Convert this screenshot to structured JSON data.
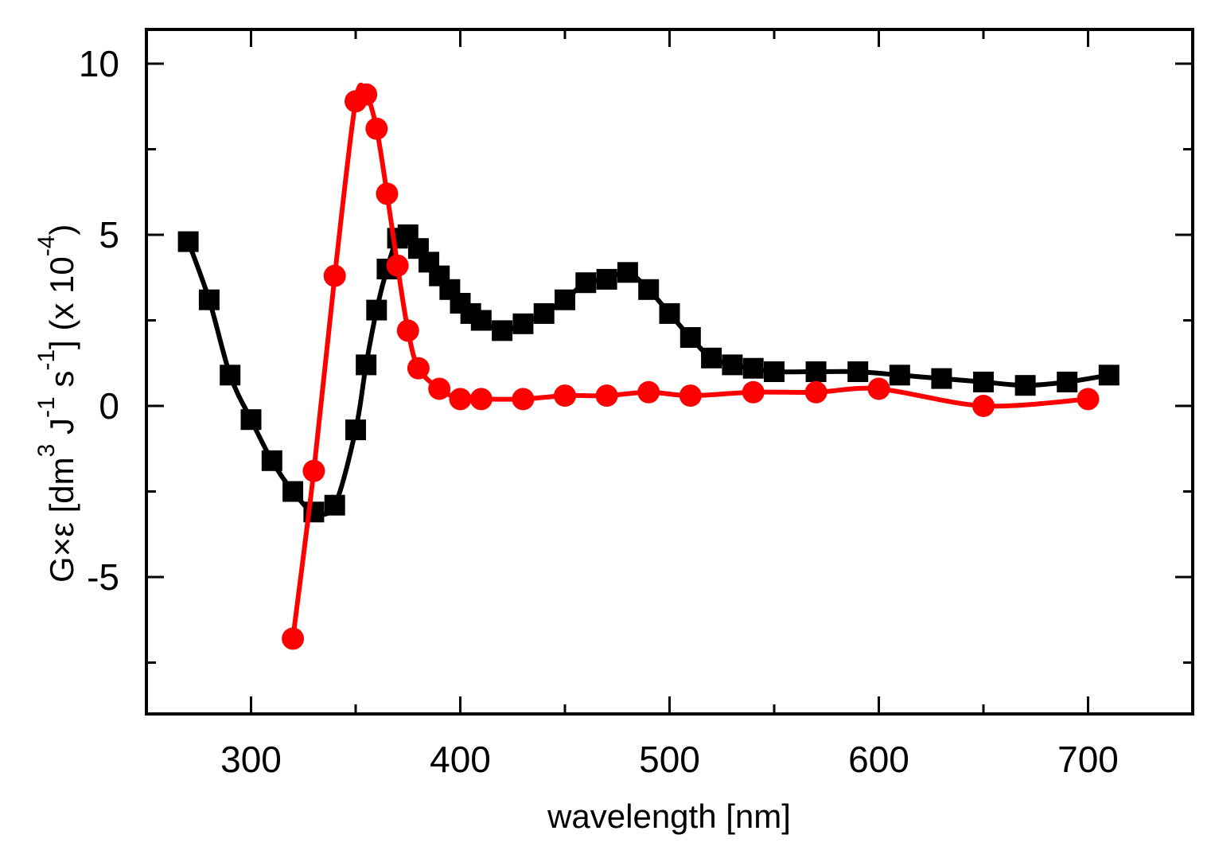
{
  "chart_data": {
    "type": "line",
    "title": "",
    "xlabel": "wavelength [nm]",
    "ylabel": "G×ε [dm3 J-1 s-1] (x 10-4)",
    "ylabel_parts": {
      "prefix": "G×ε [dm",
      "sup1": "3",
      "mid1": " J",
      "sup2": "-1",
      "mid2": " s",
      "sup3": "-1",
      "mid3": "] (x 10",
      "sup4": "-4",
      "suffix": ")"
    },
    "xlim": [
      250,
      750
    ],
    "ylim": [
      -9,
      11
    ],
    "xticks": [
      300,
      400,
      500,
      600,
      700
    ],
    "xtick_labels": [
      "300",
      "400",
      "500",
      "600",
      "700"
    ],
    "xminor": [
      250,
      350,
      450,
      550,
      650,
      750
    ],
    "yticks": [
      -5,
      0,
      5,
      10
    ],
    "ytick_labels": [
      "-5",
      "0",
      "5",
      "10"
    ],
    "yminor": [
      -7.5,
      -2.5,
      2.5,
      7.5
    ],
    "grid": false,
    "legend": "none",
    "series": [
      {
        "name": "squares",
        "color": "#000000",
        "marker": "square",
        "x": [
          270,
          280,
          290,
          300,
          310,
          320,
          330,
          340,
          350,
          355,
          360,
          365,
          370,
          375,
          380,
          385,
          390,
          395,
          400,
          405,
          410,
          420,
          430,
          440,
          450,
          460,
          470,
          480,
          490,
          500,
          510,
          520,
          530,
          540,
          550,
          570,
          590,
          610,
          630,
          650,
          670,
          690,
          710
        ],
        "values": [
          4.8,
          3.1,
          0.9,
          -0.4,
          -1.6,
          -2.5,
          -3.1,
          -2.9,
          -0.7,
          1.2,
          2.8,
          4.0,
          4.9,
          5.0,
          4.6,
          4.2,
          3.8,
          3.4,
          3.0,
          2.7,
          2.5,
          2.2,
          2.4,
          2.7,
          3.1,
          3.6,
          3.7,
          3.9,
          3.4,
          2.7,
          2.0,
          1.4,
          1.2,
          1.1,
          1.0,
          1.0,
          1.0,
          0.9,
          0.8,
          0.7,
          0.6,
          0.7,
          0.9
        ]
      },
      {
        "name": "circles",
        "color": "#ff0000",
        "marker": "circle",
        "x": [
          320,
          330,
          340,
          350,
          355,
          360,
          365,
          370,
          375,
          380,
          390,
          400,
          410,
          430,
          450,
          470,
          490,
          510,
          540,
          570,
          600,
          650,
          700
        ],
        "values": [
          -6.8,
          -1.9,
          3.8,
          8.9,
          9.1,
          8.1,
          6.2,
          4.1,
          2.2,
          1.1,
          0.5,
          0.2,
          0.2,
          0.2,
          0.3,
          0.3,
          0.4,
          0.3,
          0.4,
          0.4,
          0.5,
          0.0,
          0.2
        ]
      }
    ]
  }
}
